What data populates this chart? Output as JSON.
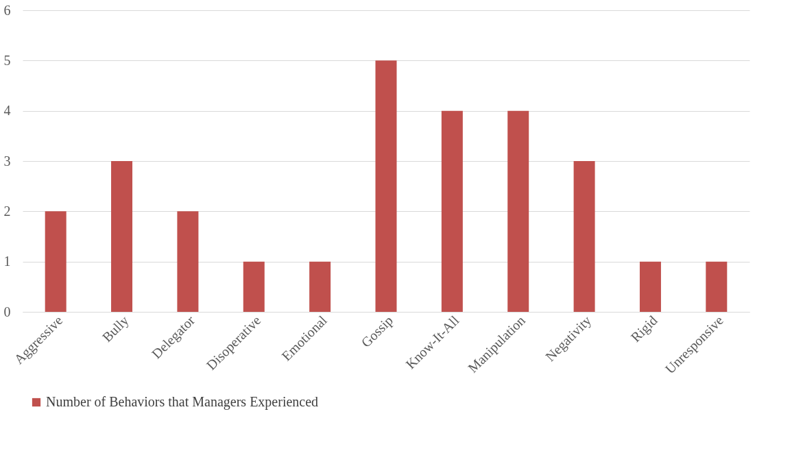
{
  "chart_data": {
    "type": "bar",
    "categories": [
      "Aggressive",
      "Bully",
      "Delegator",
      "Disoperative",
      "Emotional",
      "Gossip",
      "Know-It-All",
      "Manipulation",
      "Negativity",
      "Rigid",
      "Unresponsive"
    ],
    "series": [
      {
        "name": "Number of Behaviors that Managers Experienced",
        "color": "#c0504d",
        "values": [
          2,
          3,
          2,
          1,
          1,
          5,
          4,
          4,
          3,
          1,
          1
        ]
      }
    ],
    "ylim": [
      0,
      6
    ],
    "yticks": [
      0,
      1,
      2,
      3,
      4,
      5,
      6
    ],
    "grid": "y",
    "legend": "bottom"
  }
}
